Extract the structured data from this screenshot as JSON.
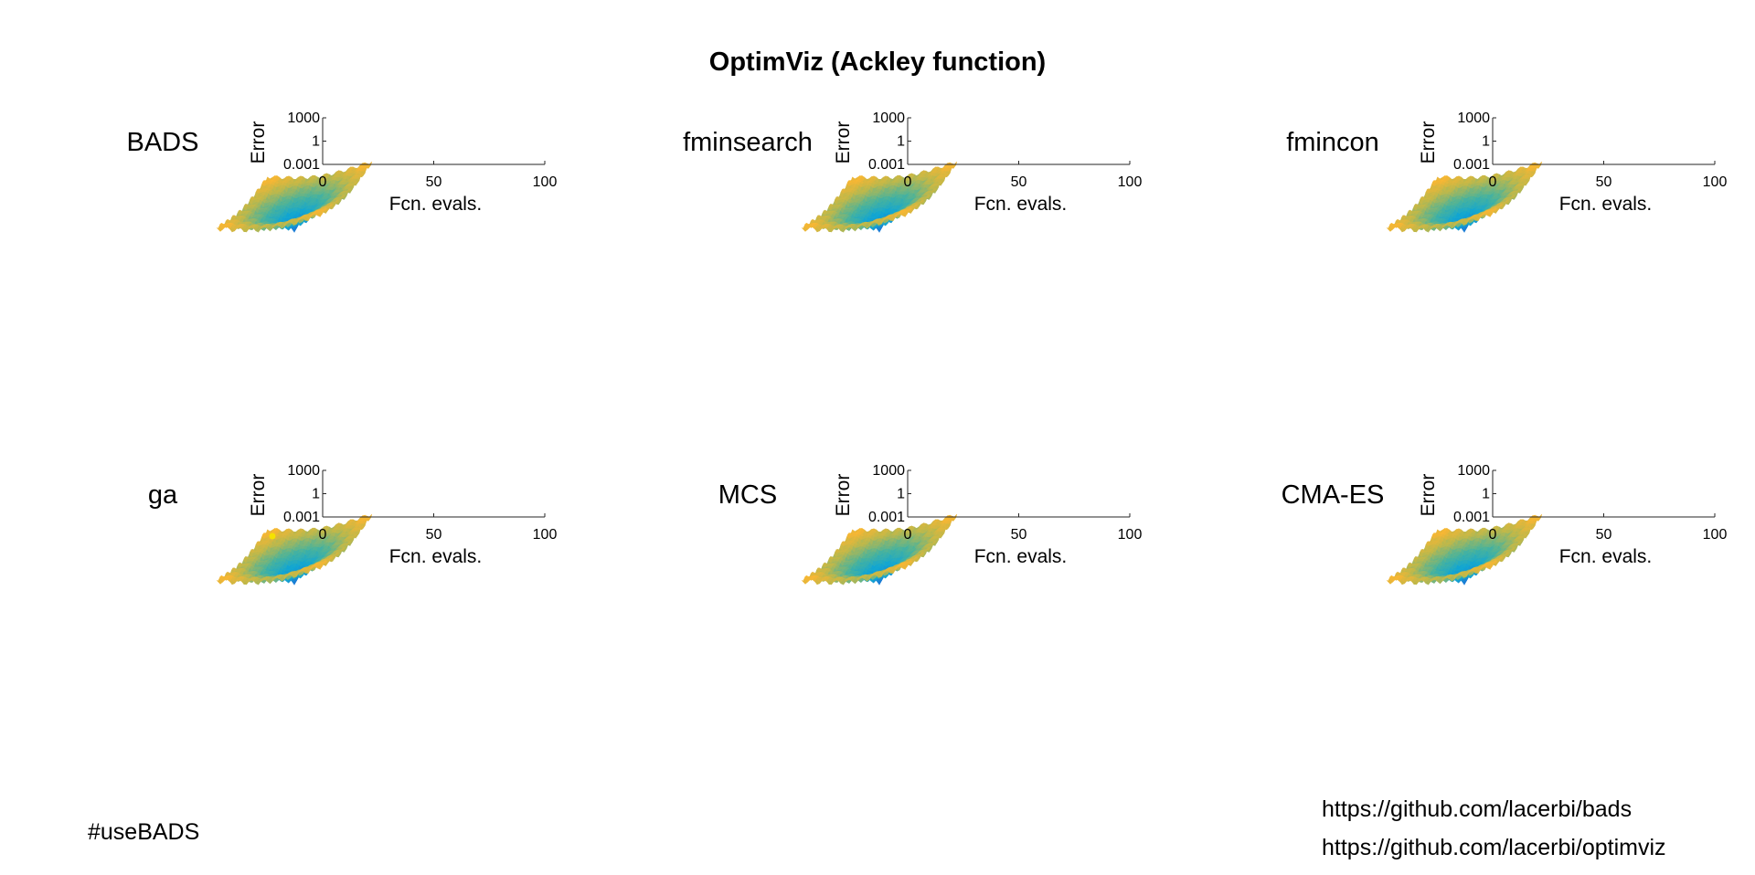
{
  "figure": {
    "title": "OptimViz (Ackley function)",
    "hashtag": "#useBADS",
    "links": [
      "https://github.com/lacerbi/bads",
      "https://github.com/lacerbi/optimviz"
    ]
  },
  "colors": {
    "surface_low": "#1f6fd6",
    "surface_mid_low": "#12a6d2",
    "surface_mid": "#4cb39a",
    "surface_mid_high": "#c0b84a",
    "surface_high": "#f7b634",
    "surface_top": "#f2e52a",
    "point_marker": "#f5e200",
    "axis": "#262626"
  },
  "chart_data": [
    {
      "type": "line",
      "title": "BADS",
      "xlabel": "Fcn. evals.",
      "ylabel": "Error",
      "xlim": [
        0,
        100
      ],
      "ylim": [
        0.001,
        1000
      ],
      "yscale": "log",
      "xticks": [
        "0",
        "50",
        "100"
      ],
      "yticks": [
        "1000",
        "1",
        "0.001"
      ],
      "series": [],
      "surface": "Ackley function"
    },
    {
      "type": "line",
      "title": "fminsearch",
      "xlabel": "Fcn. evals.",
      "ylabel": "Error",
      "xlim": [
        0,
        100
      ],
      "ylim": [
        0.001,
        1000
      ],
      "yscale": "log",
      "xticks": [
        "0",
        "50",
        "100"
      ],
      "yticks": [
        "1000",
        "1",
        "0.001"
      ],
      "series": [],
      "surface": "Ackley function"
    },
    {
      "type": "line",
      "title": "fmincon",
      "xlabel": "Fcn. evals.",
      "ylabel": "Error",
      "xlim": [
        0,
        100
      ],
      "ylim": [
        0.001,
        1000
      ],
      "yscale": "log",
      "xticks": [
        "0",
        "50",
        "100"
      ],
      "yticks": [
        "1000",
        "1",
        "0.001"
      ],
      "series": [],
      "surface": "Ackley function"
    },
    {
      "type": "line",
      "title": "ga",
      "xlabel": "Fcn. evals.",
      "ylabel": "Error",
      "xlim": [
        0,
        100
      ],
      "ylim": [
        0.001,
        1000
      ],
      "yscale": "log",
      "xticks": [
        "0",
        "50",
        "100"
      ],
      "yticks": [
        "1000",
        "1",
        "0.001"
      ],
      "series": [],
      "surface": "Ackley function",
      "marker": true
    },
    {
      "type": "line",
      "title": "MCS",
      "xlabel": "Fcn. evals.",
      "ylabel": "Error",
      "xlim": [
        0,
        100
      ],
      "ylim": [
        0.001,
        1000
      ],
      "yscale": "log",
      "xticks": [
        "0",
        "50",
        "100"
      ],
      "yticks": [
        "1000",
        "1",
        "0.001"
      ],
      "series": [],
      "surface": "Ackley function"
    },
    {
      "type": "line",
      "title": "CMA-ES",
      "xlabel": "Fcn. evals.",
      "ylabel": "Error",
      "xlim": [
        0,
        100
      ],
      "ylim": [
        0.001,
        1000
      ],
      "yscale": "log",
      "xticks": [
        "0",
        "50",
        "100"
      ],
      "yticks": [
        "1000",
        "1",
        "0.001"
      ],
      "series": [],
      "surface": "Ackley function"
    }
  ]
}
